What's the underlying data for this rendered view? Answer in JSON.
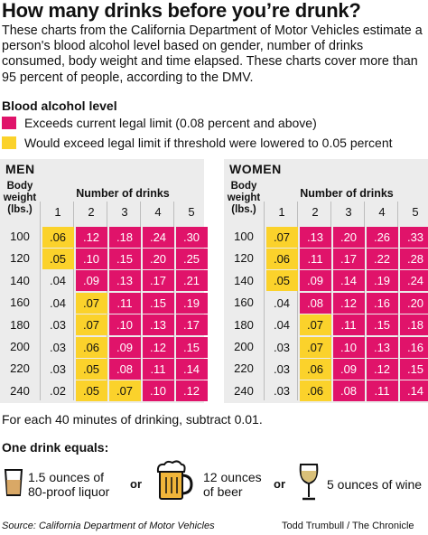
{
  "title": "How many drinks before you’re drunk?",
  "intro": "These charts from the California Department of Motor Vehicles estimate a person's blood alcohol level based on gender, number of drinks consumed, body weight and time elapsed. These charts cover more than 95 percent of people, according to the DMV.",
  "legend": {
    "heading": "Blood alcohol level",
    "items": [
      {
        "label": "Exceeds current legal limit (0.08 percent and above)",
        "color": "#e0136a"
      },
      {
        "label": "Would exceed legal limit if threshold were lowered to 0.05 percent",
        "color": "#fbd22b"
      }
    ]
  },
  "table_header": {
    "body_weight": [
      "Body",
      "weight",
      "(lbs.)"
    ],
    "number_of_drinks": "Number of drinks",
    "drink_columns": [
      "1",
      "2",
      "3",
      "4",
      "5"
    ]
  },
  "men": {
    "label": "MEN",
    "rows": [
      {
        "weight": "100",
        "values": [
          ".06",
          ".12",
          ".18",
          ".24",
          ".30"
        ],
        "levels": [
          "y",
          "r",
          "r",
          "r",
          "r"
        ]
      },
      {
        "weight": "120",
        "values": [
          ".05",
          ".10",
          ".15",
          ".20",
          ".25"
        ],
        "levels": [
          "y",
          "r",
          "r",
          "r",
          "r"
        ]
      },
      {
        "weight": "140",
        "values": [
          ".04",
          ".09",
          ".13",
          ".17",
          ".21"
        ],
        "levels": [
          "n",
          "r",
          "r",
          "r",
          "r"
        ]
      },
      {
        "weight": "160",
        "values": [
          ".04",
          ".07",
          ".11",
          ".15",
          ".19"
        ],
        "levels": [
          "n",
          "y",
          "r",
          "r",
          "r"
        ]
      },
      {
        "weight": "180",
        "values": [
          ".03",
          ".07",
          ".10",
          ".13",
          ".17"
        ],
        "levels": [
          "n",
          "y",
          "r",
          "r",
          "r"
        ]
      },
      {
        "weight": "200",
        "values": [
          ".03",
          ".06",
          ".09",
          ".12",
          ".15"
        ],
        "levels": [
          "n",
          "y",
          "r",
          "r",
          "r"
        ]
      },
      {
        "weight": "220",
        "values": [
          ".03",
          ".05",
          ".08",
          ".11",
          ".14"
        ],
        "levels": [
          "n",
          "y",
          "r",
          "r",
          "r"
        ]
      },
      {
        "weight": "240",
        "values": [
          ".02",
          ".05",
          ".07",
          ".10",
          ".12"
        ],
        "levels": [
          "n",
          "y",
          "y",
          "r",
          "r"
        ]
      }
    ]
  },
  "women": {
    "label": "WOMEN",
    "rows": [
      {
        "weight": "100",
        "values": [
          ".07",
          ".13",
          ".20",
          ".26",
          ".33"
        ],
        "levels": [
          "y",
          "r",
          "r",
          "r",
          "r"
        ]
      },
      {
        "weight": "120",
        "values": [
          ".06",
          ".11",
          ".17",
          ".22",
          ".28"
        ],
        "levels": [
          "y",
          "r",
          "r",
          "r",
          "r"
        ]
      },
      {
        "weight": "140",
        "values": [
          ".05",
          ".09",
          ".14",
          ".19",
          ".24"
        ],
        "levels": [
          "y",
          "r",
          "r",
          "r",
          "r"
        ]
      },
      {
        "weight": "160",
        "values": [
          ".04",
          ".08",
          ".12",
          ".16",
          ".20"
        ],
        "levels": [
          "n",
          "r",
          "r",
          "r",
          "r"
        ]
      },
      {
        "weight": "180",
        "values": [
          ".04",
          ".07",
          ".11",
          ".15",
          ".18"
        ],
        "levels": [
          "n",
          "y",
          "r",
          "r",
          "r"
        ]
      },
      {
        "weight": "200",
        "values": [
          ".03",
          ".07",
          ".10",
          ".13",
          ".16"
        ],
        "levels": [
          "n",
          "y",
          "r",
          "r",
          "r"
        ]
      },
      {
        "weight": "220",
        "values": [
          ".03",
          ".06",
          ".09",
          ".12",
          ".15"
        ],
        "levels": [
          "n",
          "y",
          "r",
          "r",
          "r"
        ]
      },
      {
        "weight": "240",
        "values": [
          ".03",
          ".06",
          ".08",
          ".11",
          ".14"
        ],
        "levels": [
          "n",
          "y",
          "r",
          "r",
          "r"
        ]
      }
    ]
  },
  "footnote": "For each 40 minutes of drinking, subtract 0.01.",
  "one_drink": {
    "heading": "One drink equals:",
    "or_label": "or",
    "items": [
      {
        "icon": "shot-glass-icon",
        "lines": [
          "1.5 ounces of",
          "80-proof liquor"
        ]
      },
      {
        "icon": "beer-mug-icon",
        "lines": [
          "12 ounces",
          "of beer"
        ]
      },
      {
        "icon": "wine-glass-icon",
        "lines": [
          "5 ounces of wine"
        ]
      }
    ]
  },
  "source": "Source: California Department of Motor Vehicles",
  "credit": "Todd Trumbull / The Chronicle"
}
